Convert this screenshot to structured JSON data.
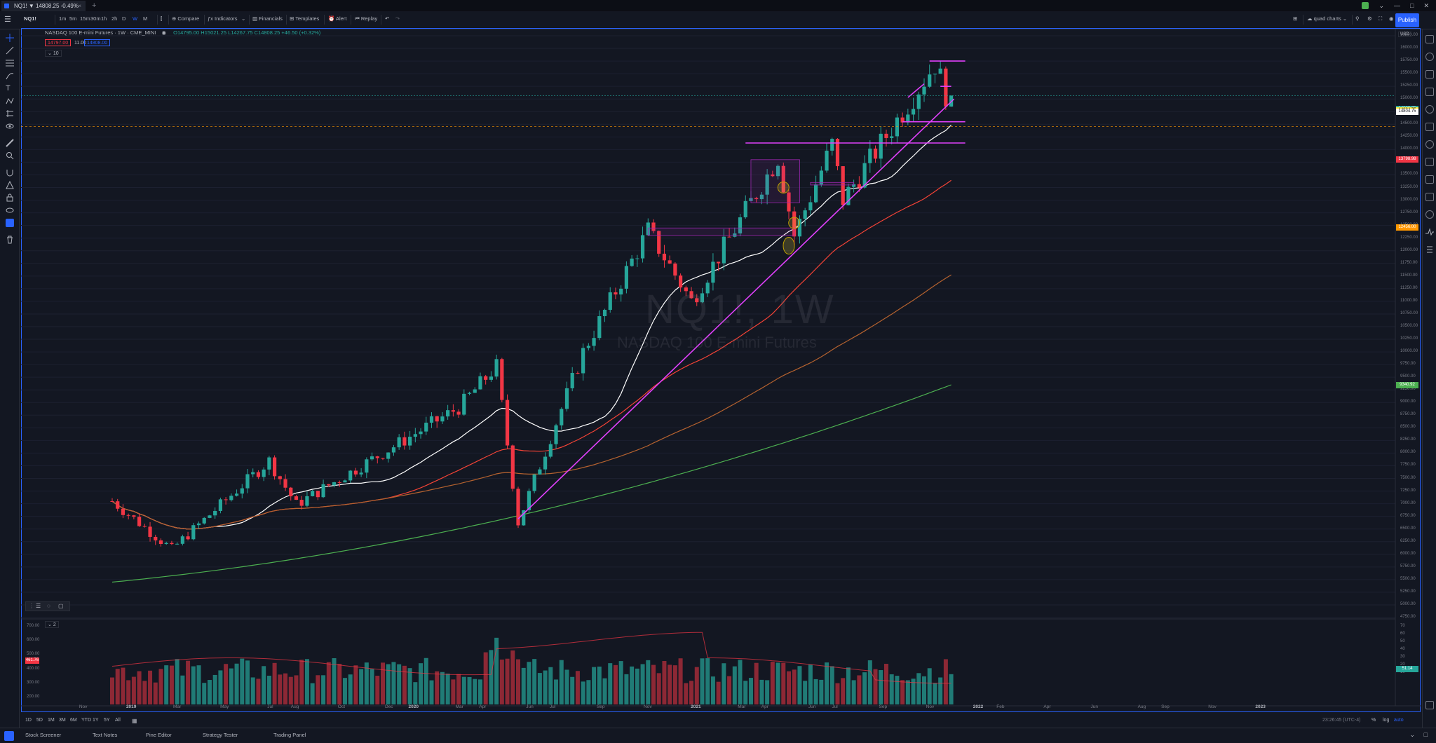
{
  "tabbar": {
    "tab_title": "NQ1! ▼ 14808.25 -0.49%",
    "tab_change": "-0.49%"
  },
  "toolbar": {
    "symbol": "NQ1!",
    "intervals": [
      "1m",
      "5m",
      "15m",
      "30m",
      "1h",
      "2h",
      "D",
      "W",
      "M"
    ],
    "active_interval": "W",
    "compare": "Compare",
    "indicators": "Indicators",
    "financials": "Financials",
    "templates": "Templates",
    "alert": "Alert",
    "replay": "Replay",
    "layout_name": "quad charts",
    "publish": "Publish"
  },
  "legend": {
    "title": "NASDAQ 100 E-mini Futures · 1W · CME_MINI",
    "ohlc": "O14795.00 H15021.25 L14267.75 C14808.25 +46.50 (+0.32%)",
    "bid": "14797.00",
    "spread": "11.00",
    "ask": "14808.00",
    "collapsed_count": "10"
  },
  "watermark": {
    "symbol_interval": "NQ1!, 1W",
    "description": "NASDAQ 100 E-mini Futures"
  },
  "price_axis": {
    "labels": [
      "16250.00",
      "16000.00",
      "15750.00",
      "15500.00",
      "15250.00",
      "15000.00",
      "14750.00",
      "14500.00",
      "14250.00",
      "14000.00",
      "13750.00",
      "13500.00",
      "13250.00",
      "13000.00",
      "12750.00",
      "12500.00",
      "12250.00",
      "12000.00",
      "11750.00",
      "11500.00",
      "11250.00",
      "11000.00",
      "10750.00",
      "10500.00",
      "10250.00",
      "10000.00",
      "9750.00",
      "9500.00",
      "9250.00",
      "9000.00",
      "8750.00",
      "8500.00",
      "8250.00",
      "8000.00",
      "7750.00",
      "7500.00",
      "7250.00",
      "7000.00",
      "6750.00",
      "6500.00",
      "6250.00",
      "6000.00",
      "5750.00",
      "5500.00",
      "5250.00",
      "5000.00",
      "4750.00"
    ],
    "tags": [
      {
        "text": "14808.25",
        "color": "#26a69a",
        "price": 14808
      },
      {
        "text": "14804.75",
        "color": "#ffeb3b",
        "price": 14780
      },
      {
        "text": "14804.75",
        "color": "#ffffff",
        "price": 14745
      },
      {
        "text": "13798.98",
        "color": "#f23645",
        "price": 13798
      },
      {
        "text": "12456.00",
        "color": "#ff9800",
        "price": 12456
      },
      {
        "text": "9340.92",
        "color": "#4caf50",
        "price": 9340
      }
    ]
  },
  "volume_axis": {
    "labels": [
      "700.00",
      "600.00",
      "500.00",
      "400.00",
      "300.00",
      "200.00"
    ],
    "tag": "461.76",
    "rsi_labels": [
      "70",
      "60",
      "50",
      "40",
      "30",
      "20",
      "10"
    ],
    "rsi_tag": "51.14"
  },
  "time_axis": {
    "labels": [
      "Nov",
      "2019",
      "Mar",
      "May",
      "Jul",
      "Aug",
      "Oct",
      "Dec",
      "2020",
      "Mar",
      "Apr",
      "Jun",
      "Jul",
      "Sep",
      "Nov",
      "2021",
      "Mar",
      "Apr",
      "Jun",
      "Jul",
      "Sep",
      "Nov",
      "2022",
      "Feb",
      "Apr",
      "Jun",
      "Aug",
      "Sep",
      "Nov",
      "2023"
    ]
  },
  "pane2": {
    "collapsed_count": "2"
  },
  "range_buttons": [
    "1D",
    "5D",
    "1M",
    "3M",
    "6M",
    "YTD",
    "1Y",
    "5Y",
    "All"
  ],
  "status": {
    "clock": "23:26:45 (UTC-4)",
    "percent": "%",
    "log": "log",
    "auto": "auto"
  },
  "bottom_panels": [
    "Stock Screener",
    "Text Notes",
    "Pine Editor",
    "Strategy Tester",
    "Trading Panel"
  ],
  "colors": {
    "bull": "#26a69a",
    "bear": "#f23645",
    "trendline": "#e040fb",
    "sma20": "#ffffff",
    "sma50": "#f44336",
    "sma100": "#b5622f",
    "sma200": "#4caf50",
    "accent": "#2962ff"
  },
  "chart_data": {
    "type": "candlestick",
    "title": "NASDAQ 100 E-mini Futures · 1W · CME_MINI",
    "ylim": [
      4750,
      16250
    ],
    "series": [
      {
        "name": "NQ1!",
        "anchors": [
          {
            "date": "2018-10-08",
            "price": 7050
          },
          {
            "date": "2018-12-24",
            "price": 6100
          },
          {
            "date": "2019-04-29",
            "price": 7850
          },
          {
            "date": "2019-06-03",
            "price": 6980
          },
          {
            "date": "2019-12-30",
            "price": 8900
          },
          {
            "date": "2020-02-17",
            "price": 9720
          },
          {
            "date": "2020-03-16",
            "price": 6630
          },
          {
            "date": "2020-06-08",
            "price": 10000
          },
          {
            "date": "2020-08-31",
            "price": 12400
          },
          {
            "date": "2020-10-26",
            "price": 11000
          },
          {
            "date": "2021-02-15",
            "price": 13850
          },
          {
            "date": "2021-03-08",
            "price": 12300
          },
          {
            "date": "2021-04-26",
            "price": 14100
          },
          {
            "date": "2021-05-10",
            "price": 13000
          },
          {
            "date": "2021-09-06",
            "price": 15700
          },
          {
            "date": "2021-09-27",
            "price": 14808
          }
        ]
      }
    ]
  }
}
